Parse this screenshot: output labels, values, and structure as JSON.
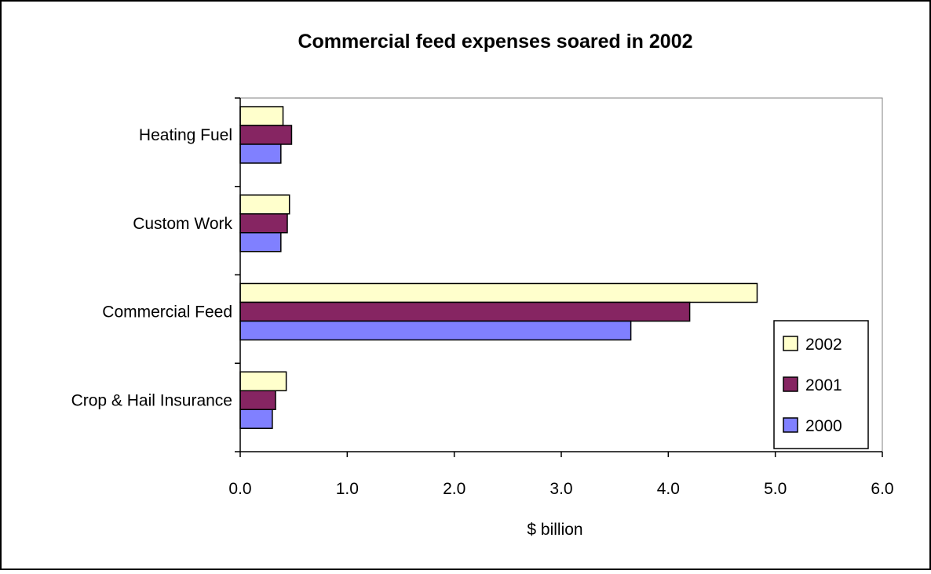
{
  "chart_data": {
    "type": "bar",
    "orientation": "horizontal",
    "title": "Commercial feed expenses soared in 2002",
    "xlabel": "$ billion",
    "ylabel": "",
    "categories": [
      "Heating Fuel",
      "Custom Work",
      "Commercial Feed",
      "Crop & Hail Insurance"
    ],
    "series": [
      {
        "name": "2002",
        "color": "#ffffcc",
        "values": [
          0.4,
          0.46,
          4.83,
          0.43
        ]
      },
      {
        "name": "2001",
        "color": "#862562",
        "values": [
          0.48,
          0.44,
          4.2,
          0.33
        ]
      },
      {
        "name": "2000",
        "color": "#8080ff",
        "values": [
          0.38,
          0.38,
          3.65,
          0.3
        ]
      }
    ],
    "xlim": [
      0,
      6
    ],
    "xticks": [
      "0.0",
      "1.0",
      "2.0",
      "3.0",
      "4.0",
      "5.0",
      "6.0"
    ],
    "grid": false,
    "legend_position": "right"
  }
}
